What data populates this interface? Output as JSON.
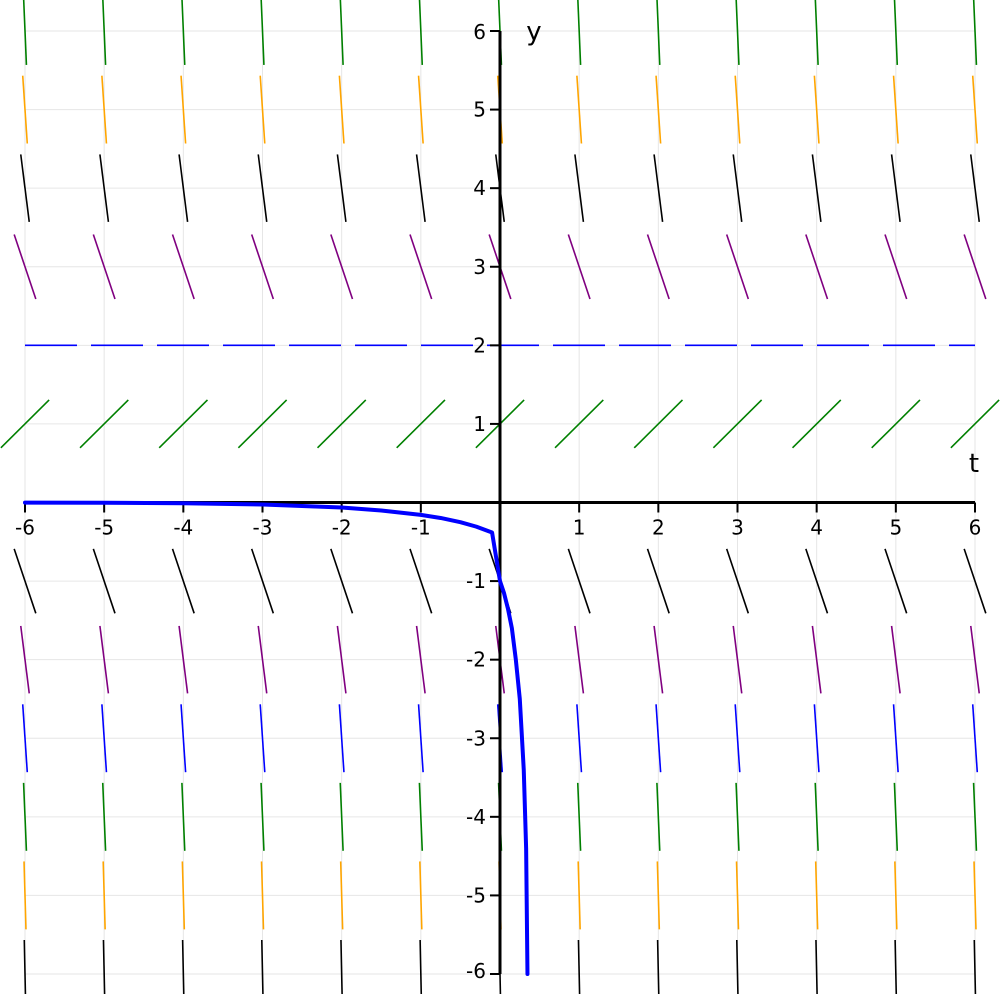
{
  "chart_data": {
    "type": "line",
    "title": "",
    "xlabel": "t",
    "ylabel": "y",
    "xlim": [
      -6,
      6
    ],
    "ylim": [
      -6,
      6
    ],
    "grid": true,
    "x_ticks": [
      "-6",
      "-5",
      "-4",
      "-3",
      "-2",
      "-1",
      "1",
      "2",
      "3",
      "4",
      "5",
      "6"
    ],
    "y_ticks": [
      "6",
      "5",
      "4",
      "3",
      "2",
      "1",
      "-1",
      "-2",
      "-3",
      "-4",
      "-5",
      "-6"
    ],
    "slope_field": {
      "t_values": [
        -6,
        -5,
        -4,
        -3,
        -2,
        -1,
        0,
        1,
        2,
        3,
        4,
        5,
        6
      ],
      "y_values": [
        6,
        5,
        4,
        3,
        1,
        -1,
        -2,
        -3,
        -4,
        -5,
        -6
      ],
      "equation_slope": "y(2 - y)",
      "row_colors": {
        "6": "#008000",
        "5": "#ffa500",
        "4": "#000000",
        "3": "#800080",
        "1": "#008000",
        "-1": "#000000",
        "-2": "#800080",
        "-3": "#0000ff",
        "-4": "#008000",
        "-5": "#ffa500",
        "-6": "#000000"
      }
    },
    "equilibrium": {
      "y": 2,
      "color": "#0000ff",
      "style": "dashed"
    },
    "series": [
      {
        "color": "#0000ff",
        "x": [
          -6,
          -5,
          -4,
          -3,
          -2,
          -1.5,
          -1,
          -0.75,
          -0.5,
          -0.3,
          -0.1,
          0,
          0.05,
          0.1,
          0.15,
          0.2,
          0.25,
          0.3,
          0.33,
          0.347
        ],
        "y": [
          -0.0012,
          -0.0034,
          -0.0092,
          -0.025,
          -0.064,
          -0.102,
          -0.157,
          -0.197,
          -0.25,
          -0.307,
          -0.382,
          -1,
          -1.15,
          -1.35,
          -1.6,
          -2.0,
          -2.5,
          -3.4,
          -4.4,
          -6.0
        ]
      }
    ]
  }
}
